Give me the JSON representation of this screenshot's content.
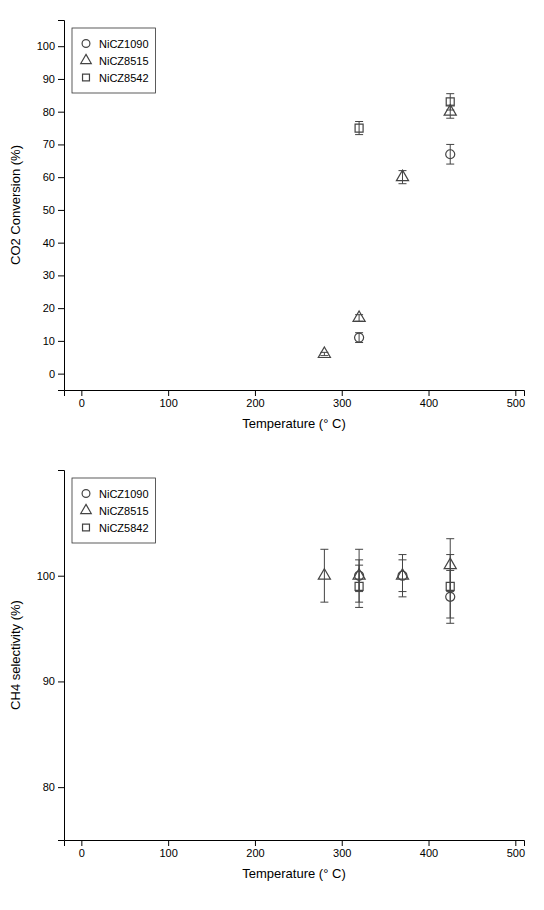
{
  "chart_data": [
    {
      "type": "scatter",
      "x_label": "Temperature (° C)",
      "y_label": "CO2 Conversion (%)",
      "xlim": [
        -20,
        510
      ],
      "xticks": [
        0,
        100,
        200,
        300,
        400,
        500
      ],
      "ylim": [
        -5,
        108
      ],
      "yticks": [
        0,
        10,
        20,
        30,
        40,
        50,
        60,
        70,
        80,
        90,
        100
      ],
      "legend": "upper left",
      "color": "#444444",
      "series": [
        {
          "name": "NiCZ1090",
          "marker": "circle",
          "x": [
            320,
            425
          ],
          "values": [
            11,
            67
          ],
          "errors": [
            1.5,
            3.0
          ]
        },
        {
          "name": "NiCZ8515",
          "marker": "triangle",
          "x": [
            280,
            320,
            370,
            425
          ],
          "values": [
            6,
            17,
            60,
            80
          ],
          "errors": [
            0.5,
            1.0,
            2.0,
            2.0
          ]
        },
        {
          "name": "NiCZ8542",
          "marker": "square",
          "x": [
            320,
            425
          ],
          "values": [
            75,
            83
          ],
          "errors": [
            2.0,
            2.5
          ]
        }
      ]
    },
    {
      "type": "scatter",
      "x_label": "Temperature (° C)",
      "y_label": "CH4 selectivity (%)",
      "xlim": [
        -20,
        510
      ],
      "xticks": [
        0,
        100,
        200,
        300,
        400,
        500
      ],
      "ylim": [
        75,
        110
      ],
      "yticks": [
        80,
        90,
        100
      ],
      "legend": "upper left",
      "color": "#444444",
      "series": [
        {
          "name": "NiCZ1090",
          "marker": "circle",
          "x": [
            320,
            370,
            425
          ],
          "values": [
            100,
            100,
            98
          ],
          "errors": [
            1.5,
            1.5,
            2.5
          ]
        },
        {
          "name": "NiCZ8515",
          "marker": "triangle",
          "x": [
            280,
            320,
            370,
            425
          ],
          "values": [
            100,
            100,
            100,
            101
          ],
          "errors": [
            2.5,
            2.5,
            2.0,
            2.5
          ]
        },
        {
          "name": "NiCZ5842",
          "marker": "square",
          "x": [
            320,
            425
          ],
          "values": [
            99,
            99
          ],
          "errors": [
            2.0,
            3.0
          ]
        }
      ]
    }
  ]
}
